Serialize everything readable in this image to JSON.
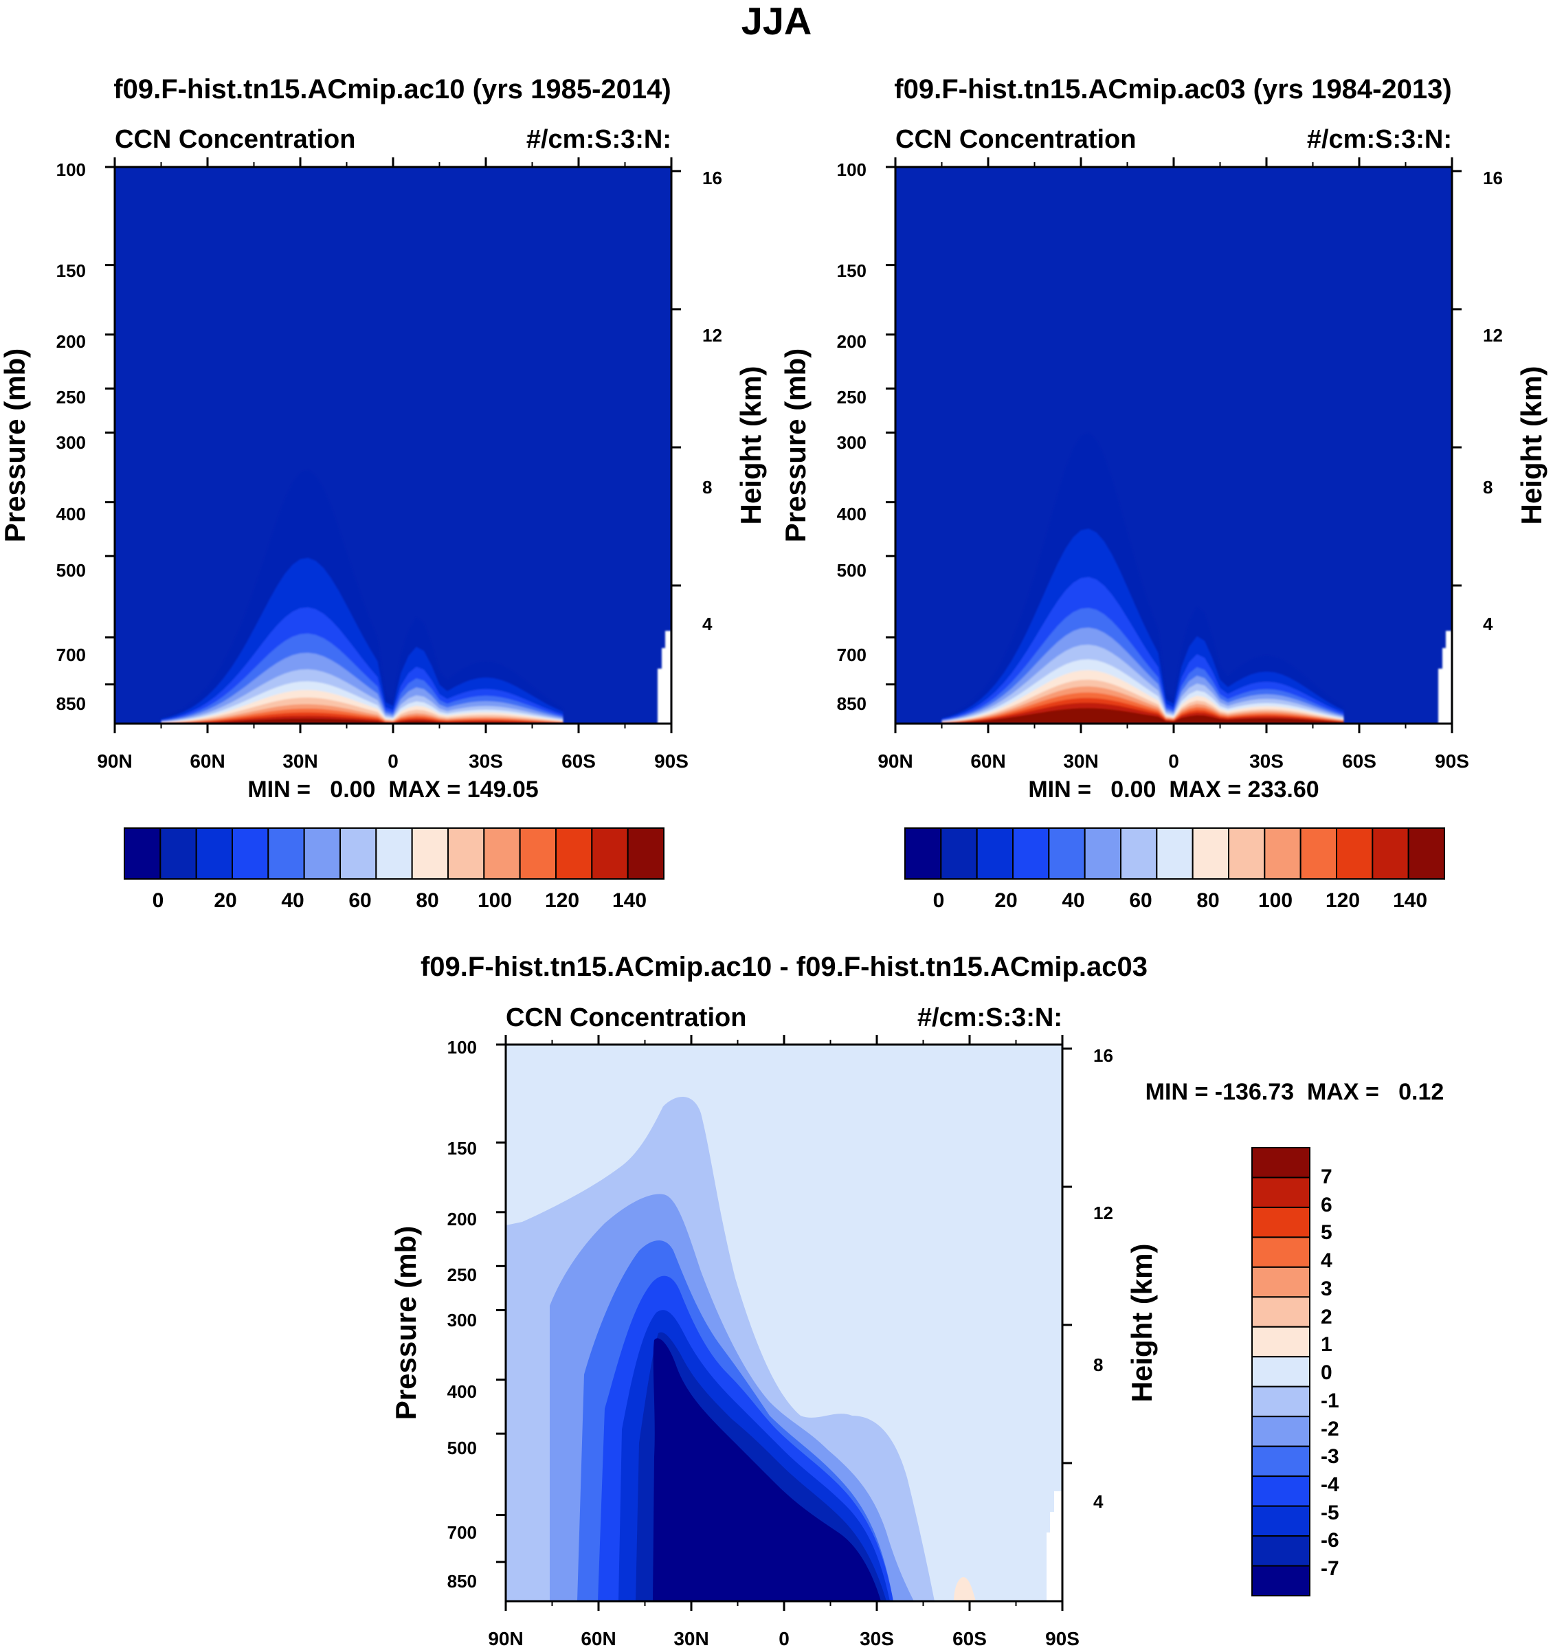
{
  "figure": {
    "title": "JJA"
  },
  "palettes": {
    "abs": [
      "#00008b",
      "#0324b4",
      "#0532d8",
      "#1a47f5",
      "#3f6ef5",
      "#7b9cf5",
      "#aec4f8",
      "#dae8fb",
      "#fde7d8",
      "#fac4a9",
      "#f89a73",
      "#f56c3b",
      "#e63d12",
      "#c01e0a",
      "#8a0a05"
    ],
    "diff": [
      "#00008b",
      "#0324b4",
      "#0532d8",
      "#1a47f5",
      "#3f6ef5",
      "#7b9cf5",
      "#aec4f8",
      "#dae8fb",
      "#fde7d8",
      "#fac4a9",
      "#f89a73",
      "#f56c3b",
      "#e63d12",
      "#c01e0a",
      "#8a0a05"
    ]
  },
  "chart_data": [
    {
      "type": "heatmap",
      "id": "ac10",
      "title": "f09.F-hist.tn15.ACmip.ac10 (yrs 1985-2014)",
      "left_label": "CCN Concentration",
      "right_label": "#/cm:S:3:N:",
      "xlabel": "",
      "ylabel": "Pressure (mb)",
      "ylabel_right": "Height (km)",
      "x_tick_labels": [
        "90N",
        "60N",
        "30N",
        "0",
        "30S",
        "60S",
        "90S"
      ],
      "x_ticks": [
        90,
        60,
        30,
        0,
        -30,
        -60,
        -90
      ],
      "x_range": [
        90,
        -90
      ],
      "y_tick_labels": [
        "100",
        "150",
        "200",
        "250",
        "300",
        "400",
        "500",
        "700",
        "850"
      ],
      "y_ticks": [
        100,
        150,
        200,
        250,
        300,
        400,
        500,
        700,
        850
      ],
      "y_range": [
        100,
        1000
      ],
      "height_tick_labels": [
        "16",
        "12",
        "8",
        "4"
      ],
      "height_ticks_km": [
        16,
        12,
        8,
        4
      ],
      "min_max": "MIN =   0.00  MAX = 149.05",
      "levels": [
        0,
        10,
        20,
        30,
        40,
        50,
        60,
        70,
        80,
        90,
        100,
        110,
        120,
        130,
        140
      ],
      "colorbar_labels": [
        "0",
        "20",
        "40",
        "60",
        "80",
        "100",
        "120",
        "140"
      ],
      "plume_tops_mb": [
        350,
        480,
        580,
        640,
        690,
        740,
        780,
        810,
        840,
        870,
        890,
        910,
        930,
        950
      ],
      "field_max": 149.05
    },
    {
      "type": "heatmap",
      "id": "ac03",
      "title": "f09.F-hist.tn15.ACmip.ac03 (yrs 1984-2013)",
      "left_label": "CCN Concentration",
      "right_label": "#/cm:S:3:N:",
      "xlabel": "",
      "ylabel": "Pressure (mb)",
      "ylabel_right": "Height (km)",
      "x_tick_labels": [
        "90N",
        "60N",
        "30N",
        "0",
        "30S",
        "60S",
        "90S"
      ],
      "x_ticks": [
        90,
        60,
        30,
        0,
        -30,
        -60,
        -90
      ],
      "x_range": [
        90,
        -90
      ],
      "y_tick_labels": [
        "100",
        "150",
        "200",
        "250",
        "300",
        "400",
        "500",
        "700",
        "850"
      ],
      "y_ticks": [
        100,
        150,
        200,
        250,
        300,
        400,
        500,
        700,
        850
      ],
      "y_range": [
        100,
        1000
      ],
      "height_tick_labels": [
        "16",
        "12",
        "8",
        "4"
      ],
      "height_ticks_km": [
        16,
        12,
        8,
        4
      ],
      "min_max": "MIN =   0.00  MAX = 233.60",
      "levels": [
        0,
        10,
        20,
        30,
        40,
        50,
        60,
        70,
        80,
        90,
        100,
        110,
        120,
        130,
        140
      ],
      "colorbar_labels": [
        "0",
        "20",
        "40",
        "60",
        "80",
        "100",
        "120",
        "140"
      ],
      "plume_tops_mb": [
        300,
        420,
        500,
        560,
        600,
        640,
        680,
        710,
        740,
        760,
        780,
        800,
        820,
        850
      ],
      "field_max": 233.6
    },
    {
      "type": "heatmap",
      "id": "diff",
      "title": "f09.F-hist.tn15.ACmip.ac10 - f09.F-hist.tn15.ACmip.ac03",
      "left_label": "CCN Concentration",
      "right_label": "#/cm:S:3:N:",
      "xlabel": "",
      "ylabel": "Pressure (mb)",
      "ylabel_right": "Height (km)",
      "x_tick_labels": [
        "90N",
        "60N",
        "30N",
        "0",
        "30S",
        "60S",
        "90S"
      ],
      "x_ticks": [
        90,
        60,
        30,
        0,
        -30,
        -60,
        -90
      ],
      "x_range": [
        90,
        -90
      ],
      "y_tick_labels": [
        "100",
        "150",
        "200",
        "250",
        "300",
        "400",
        "500",
        "700",
        "850"
      ],
      "y_ticks": [
        100,
        150,
        200,
        250,
        300,
        400,
        500,
        700,
        850
      ],
      "y_range": [
        100,
        1000
      ],
      "height_tick_labels": [
        "16",
        "12",
        "8",
        "4"
      ],
      "height_ticks_km": [
        16,
        12,
        8,
        4
      ],
      "min_max": "MIN = -136.73  MAX =   0.12",
      "levels": [
        -7,
        -6,
        -5,
        -4,
        -3,
        -2,
        -1,
        0,
        1,
        2,
        3,
        4,
        5,
        6,
        7
      ],
      "colorbar_labels": [
        "7",
        "6",
        "5",
        "4",
        "3",
        "2",
        "1",
        "0",
        "-1",
        "-2",
        "-3",
        "-4",
        "-5",
        "-6",
        "-7"
      ]
    }
  ]
}
